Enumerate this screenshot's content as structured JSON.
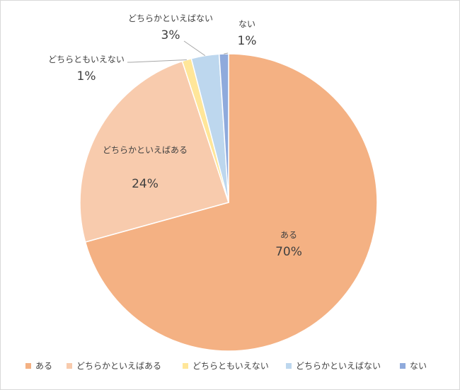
{
  "chart_data": {
    "type": "pie",
    "categories": [
      "ある",
      "どちらかといえばある",
      "どちらともいえない",
      "どちらかといえばない",
      "ない"
    ],
    "values": [
      70,
      24,
      1,
      3,
      1
    ],
    "value_labels": [
      "70%",
      "24%",
      "1%",
      "3%",
      "1%"
    ],
    "colors": [
      "#f4b183",
      "#f8cbad",
      "#ffe699",
      "#bdd7ee",
      "#8faadc"
    ],
    "legend": "bottom"
  }
}
